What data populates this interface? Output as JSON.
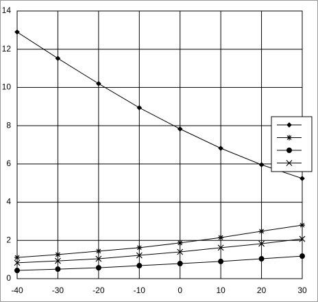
{
  "chart_data": {
    "type": "line",
    "x": [
      -40,
      -30,
      -20,
      -10,
      0,
      10,
      20,
      30
    ],
    "series": [
      {
        "color": "#000000",
        "marker": "diamond",
        "values": [
          12.9,
          11.52,
          10.2,
          8.94,
          7.83,
          6.82,
          5.96,
          5.24
        ]
      },
      {
        "color": "#000000",
        "marker": "star",
        "values": [
          1.11,
          1.26,
          1.44,
          1.62,
          1.87,
          2.15,
          2.48,
          2.8
        ]
      },
      {
        "color": "#000000",
        "marker": "circle",
        "values": [
          0.43,
          0.5,
          0.57,
          0.68,
          0.79,
          0.9,
          1.04,
          1.18
        ]
      },
      {
        "color": "#000000",
        "marker": "x",
        "values": [
          0.83,
          0.93,
          1.04,
          1.22,
          1.4,
          1.62,
          1.83,
          2.08
        ]
      }
    ],
    "xlim": [
      -40,
      30
    ],
    "xticks": [
      -40,
      -30,
      -20,
      -10,
      0,
      10,
      20,
      30
    ],
    "ylim": [
      0,
      14
    ],
    "yticks": [
      0,
      2,
      4,
      6,
      8,
      10,
      12,
      14
    ],
    "grid": true,
    "legend": "right"
  }
}
